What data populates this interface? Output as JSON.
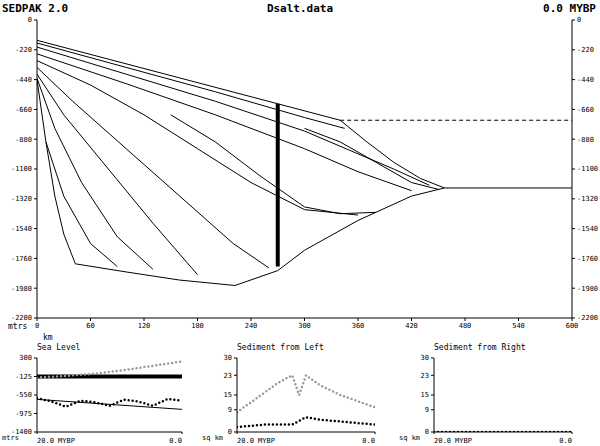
{
  "chart_data": [
    {
      "type": "line",
      "title": "Dsalt.data",
      "annotations": [
        "SEDPAK 2.0",
        "0.0 MYBP"
      ],
      "x_label": "km",
      "y_label": "mtrs",
      "xlim": [
        0,
        600
      ],
      "xticks": [
        0,
        60,
        120,
        180,
        240,
        300,
        360,
        420,
        480,
        540,
        600
      ],
      "ylim": [
        -2200,
        0
      ],
      "yticks": [
        0,
        -220,
        -440,
        -660,
        -880,
        -1100,
        -1320,
        -1540,
        -1760,
        -1980,
        -2200
      ],
      "y2lim": [
        -2200,
        0
      ],
      "y2ticks": [
        0,
        -220,
        -440,
        -660,
        -880,
        -1100,
        -1320,
        -1540,
        -1760,
        -1980,
        -2200
      ],
      "series": [
        {
          "color": "#000000",
          "line_style": "solid",
          "x": [
            0,
            340
          ],
          "values": [
            -150,
            -740
          ]
        },
        {
          "color": "#000000",
          "line_style": "solid",
          "x": [
            340,
            370,
            400,
            430,
            457
          ],
          "values": [
            -740,
            -900,
            -1050,
            -1170,
            -1240
          ]
        },
        {
          "color": "#000000",
          "line_style": "dashed",
          "x": [
            340,
            600
          ],
          "values": [
            -740,
            -740
          ]
        },
        {
          "color": "#000000",
          "line_style": "solid",
          "x": [
            0,
            10,
            20,
            30,
            43,
            100,
            160,
            222,
            270,
            300,
            360,
            420,
            457,
            600
          ],
          "values": [
            -440,
            -900,
            -1300,
            -1580,
            -1800,
            -1860,
            -1920,
            -1960,
            -1850,
            -1700,
            -1480,
            -1300,
            -1240,
            -1240
          ]
        },
        {
          "color": "#000000",
          "line_style": "thick",
          "x": [
            270,
            270
          ],
          "values": [
            -618,
            -1820
          ]
        },
        {
          "color": "#000000",
          "line_style": "solid",
          "x": [
            0,
            100,
            200,
            300,
            345
          ],
          "values": [
            -170,
            -350,
            -530,
            -720,
            -800
          ]
        },
        {
          "color": "#000000",
          "line_style": "solid",
          "x": [
            0,
            100,
            200,
            300,
            350,
            400,
            440
          ],
          "values": [
            -200,
            -400,
            -600,
            -820,
            -960,
            -1100,
            -1220
          ]
        },
        {
          "color": "#000000",
          "line_style": "solid",
          "x": [
            0,
            100,
            200,
            300,
            360,
            420
          ],
          "values": [
            -250,
            -470,
            -700,
            -950,
            -1120,
            -1260
          ]
        },
        {
          "color": "#000000",
          "line_style": "solid",
          "x": [
            0,
            60,
            120,
            180,
            240,
            300,
            360
          ],
          "values": [
            -300,
            -480,
            -700,
            -950,
            -1200,
            -1400,
            -1440
          ]
        },
        {
          "color": "#000000",
          "line_style": "solid",
          "x": [
            0,
            40,
            100,
            160,
            220,
            260
          ],
          "values": [
            -350,
            -600,
            -950,
            -1300,
            -1650,
            -1830
          ]
        },
        {
          "color": "#000000",
          "line_style": "solid",
          "x": [
            0,
            30,
            80,
            130,
            180
          ],
          "values": [
            -400,
            -700,
            -1100,
            -1500,
            -1880
          ]
        },
        {
          "color": "#000000",
          "line_style": "solid",
          "x": [
            0,
            20,
            50,
            90,
            130
          ],
          "values": [
            -430,
            -800,
            -1200,
            -1600,
            -1840
          ]
        },
        {
          "color": "#000000",
          "line_style": "solid",
          "x": [
            10,
            30,
            60,
            90
          ],
          "values": [
            -900,
            -1300,
            -1650,
            -1820
          ]
        },
        {
          "color": "#000000",
          "line_style": "solid",
          "x": [
            300,
            340,
            380,
            420,
            450
          ],
          "values": [
            -800,
            -900,
            -1050,
            -1200,
            -1250
          ]
        },
        {
          "color": "#000000",
          "line_style": "solid",
          "x": [
            150,
            200,
            250,
            300,
            340,
            380
          ],
          "values": [
            -700,
            -900,
            -1150,
            -1380,
            -1430,
            -1420
          ]
        }
      ]
    },
    {
      "type": "line",
      "title": "Sea Level",
      "y_label": "mtrs",
      "xlim": [
        20,
        0
      ],
      "xticks": [
        {
          "value": 20,
          "label": "20.0 MYBP"
        },
        {
          "value": 0,
          "label": "0.0"
        }
      ],
      "ylim": [
        -1400,
        300
      ],
      "yticks": [
        300,
        -125,
        -550,
        -975,
        -1400
      ],
      "series": [
        {
          "color": "#000000",
          "line_style": "thick",
          "x": [
            20,
            0
          ],
          "values": [
            -125,
            -125
          ]
        },
        {
          "color": "#999999",
          "line_style": "dotted",
          "x": [
            20,
            16,
            12,
            8,
            4,
            0
          ],
          "values": [
            -150,
            -110,
            -60,
            20,
            120,
            220
          ]
        },
        {
          "color": "#000000",
          "line_style": "solid",
          "x": [
            20,
            0
          ],
          "values": [
            -650,
            -880
          ]
        },
        {
          "color": "#000000",
          "line_style": "dotted",
          "x": [
            20,
            18,
            16,
            14,
            12,
            10,
            8,
            6,
            4,
            2,
            0
          ],
          "values": [
            -620,
            -700,
            -820,
            -680,
            -720,
            -800,
            -660,
            -700,
            -800,
            -640,
            -680
          ]
        }
      ]
    },
    {
      "type": "line",
      "title": "Sediment from Left",
      "y_label": "sq km",
      "xlim": [
        20,
        0
      ],
      "xticks": [
        {
          "value": 20,
          "label": "20.0 MYBP"
        },
        {
          "value": 0,
          "label": "0.0"
        }
      ],
      "ylim": [
        0,
        30
      ],
      "yticks": [
        30,
        23,
        15,
        9,
        0
      ],
      "series": [
        {
          "color": "#999999",
          "line_style": "dotted",
          "x": [
            20,
            17,
            14,
            12,
            11,
            10,
            8,
            5,
            2,
            0
          ],
          "values": [
            8,
            14,
            20,
            23,
            15,
            23,
            19,
            15,
            12,
            10
          ]
        },
        {
          "color": "#000000",
          "line_style": "dotted",
          "x": [
            20,
            16,
            12,
            10,
            8,
            4,
            0
          ],
          "values": [
            2,
            3,
            3,
            6,
            5,
            4,
            3
          ]
        }
      ]
    },
    {
      "type": "line",
      "title": "Sediment from Right",
      "y_label": "sq km",
      "xlim": [
        20,
        0
      ],
      "xticks": [
        {
          "value": 20,
          "label": "20.0 MYBP"
        },
        {
          "value": 0,
          "label": "0.0"
        }
      ],
      "ylim": [
        0,
        30
      ],
      "yticks": [
        30,
        23,
        15,
        9,
        0
      ],
      "series": [
        {
          "color": "#000000",
          "line_style": "dotted",
          "x": [
            20,
            0
          ],
          "values": [
            0,
            0
          ]
        }
      ]
    }
  ]
}
